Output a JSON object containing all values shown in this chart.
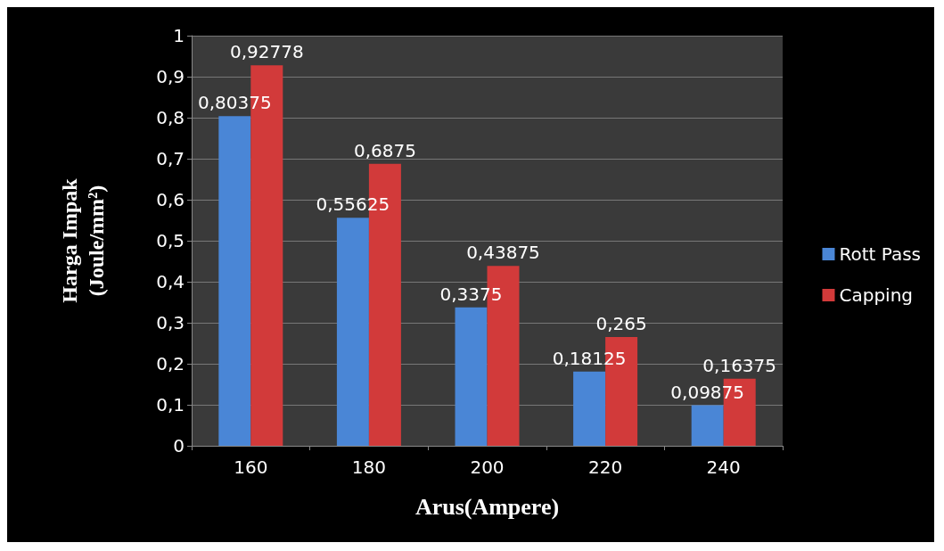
{
  "chart_data": {
    "type": "bar",
    "xlabel": "Arus(Ampere)",
    "ylabel": "Harga Impak\n(Joule/mm²)",
    "categories": [
      "160",
      "180",
      "200",
      "220",
      "240"
    ],
    "series": [
      {
        "name": "Rott Pass",
        "color": "#4a86d6",
        "values": [
          0.80375,
          0.55625,
          0.3375,
          0.18125,
          0.09875
        ],
        "value_labels": [
          "0,80375",
          "0,55625",
          "0,3375",
          "0,18125",
          "0,09875"
        ]
      },
      {
        "name": "Capping",
        "color": "#d23a3a",
        "values": [
          0.92778,
          0.6875,
          0.43875,
          0.265,
          0.16375
        ],
        "value_labels": [
          "0,92778",
          "0,6875",
          "0,43875",
          "0,265",
          "0,16375"
        ]
      }
    ],
    "ylim": [
      0,
      1
    ],
    "yticks": [
      0,
      {
        "value": 0.1,
        "label": "0,1"
      },
      {
        "value": 0.2,
        "label": "0,2"
      },
      {
        "value": 0.3,
        "label": "0,3"
      },
      {
        "value": 0.4,
        "label": "0,4"
      },
      {
        "value": 0.5,
        "label": "0,5"
      },
      {
        "value": 0.6,
        "label": "0,6"
      },
      {
        "value": 0.7,
        "label": "0,7"
      },
      {
        "value": 0.8,
        "label": "0,8"
      },
      {
        "value": 0.9,
        "label": "0,9"
      },
      1
    ],
    "grid": "y",
    "legend": "right"
  }
}
